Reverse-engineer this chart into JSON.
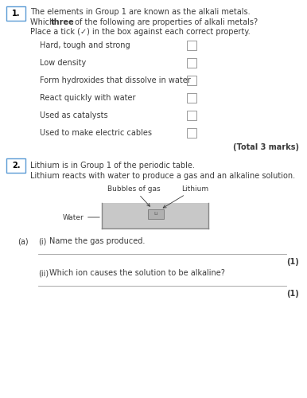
{
  "bg_color": "#ffffff",
  "q1_number": "1.",
  "q1_box_color": "#5b9bd5",
  "q1_line1": "The elements in Group 1 are known as the alkali metals.",
  "q1_line2_pre": "Which ",
  "q1_line2_bold": "three",
  "q1_line2_post": " of the following are properties of alkali metals?",
  "q1_line3": "Place a tick (✓) in the box against each correct property.",
  "q1_options": [
    "Hard, tough and strong",
    "Low density",
    "Form hydroxides that dissolve in water",
    "React quickly with water",
    "Used as catalysts",
    "Used to make electric cables"
  ],
  "total_marks": "(Total 3 marks)",
  "q2_number": "2.",
  "q2_box_color": "#5b9bd5",
  "q2_line1": "Lithium is in Group 1 of the periodic table.",
  "q2_line2": "Lithium reacts with water to produce a gas and an alkaline solution.",
  "diagram_label_bubbles": "Bubbles of gas",
  "diagram_label_lithium": "Lithium",
  "diagram_label_water": "Water",
  "diagram_fill_color": "#c8c8c8",
  "diagram_border_color": "#888888",
  "qa_label": "(a)",
  "qi_label": "(i)",
  "qi_text": "Name the gas produced.",
  "qii_label": "(ii)",
  "qii_text": "Which ion causes the solution to be alkaline?",
  "mark1": "(1)",
  "mark2": "(1)",
  "text_color": "#3a3a3a",
  "line_color": "#999999",
  "font_size_body": 7.0,
  "font_size_label": 6.5
}
